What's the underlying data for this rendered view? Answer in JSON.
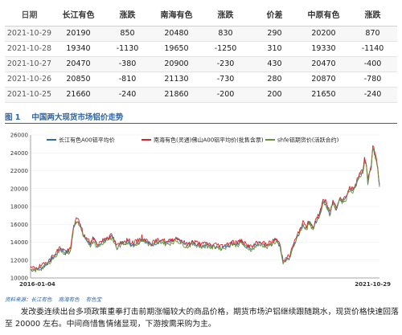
{
  "table": {
    "headers": [
      "日期",
      "长江有色",
      "涨跌",
      "南海有色",
      "涨跌",
      "价差",
      "中原有色",
      "涨跌"
    ],
    "rows": [
      [
        "2021-10-29",
        "20190",
        "850",
        "20480",
        "830",
        "290",
        "20200",
        "870"
      ],
      [
        "2021-10-28",
        "19340",
        "-1130",
        "19650",
        "-1250",
        "310",
        "19330",
        "-1140"
      ],
      [
        "2021-10-27",
        "20470",
        "-380",
        "20900",
        "-230",
        "430",
        "20470",
        "-400"
      ],
      [
        "2021-10-26",
        "20850",
        "-810",
        "21130",
        "-730",
        "280",
        "20870",
        "-780"
      ],
      [
        "2021-10-25",
        "21660",
        "-240",
        "21860",
        "-200",
        "200",
        "21650",
        "-240"
      ]
    ]
  },
  "figure": {
    "number": "图 1",
    "title": "中国两大现货市场铝价走势"
  },
  "chart_data": {
    "type": "line",
    "title": "",
    "xlabel": "",
    "ylabel": "",
    "x_tick_labels": [
      "2016-01-04",
      "2021-10-29"
    ],
    "ylim": [
      10000,
      26000
    ],
    "y_ticks": [
      10000,
      12000,
      14000,
      16000,
      18000,
      20000,
      22000,
      24000,
      26000
    ],
    "series": [
      {
        "name": "长江有色A00铝平均价",
        "color": "#2e6bb5"
      },
      {
        "name": "南海有色(灵通)佛山A00铝平均价(批售含票)",
        "color": "#d7262b"
      },
      {
        "name": "shfe铝期货价(活跃合约)",
        "color": "#6d8f3a"
      }
    ],
    "x_index": [
      0,
      8,
      16,
      24,
      30,
      36,
      42,
      48,
      52,
      56,
      60,
      64,
      68,
      72,
      76,
      80,
      86,
      92,
      98,
      104,
      110,
      116,
      122,
      128,
      134,
      140,
      146,
      152,
      158,
      164,
      170,
      176,
      182,
      188,
      194,
      200,
      206,
      212,
      218,
      224,
      230,
      236,
      242,
      248,
      254,
      260,
      266,
      272,
      278,
      284,
      290,
      296,
      300,
      304,
      308,
      312,
      316,
      320,
      324,
      328,
      332,
      336,
      340,
      344,
      348,
      352,
      356,
      360,
      364,
      368,
      372,
      376,
      380,
      384,
      388,
      392,
      396,
      400,
      402,
      404,
      406,
      408,
      410,
      412,
      414,
      416,
      418,
      420
    ],
    "values": [
      10900,
      11000,
      11300,
      12000,
      12600,
      13300,
      12800,
      13000,
      15800,
      16500,
      15800,
      14600,
      14200,
      13800,
      14300,
      13600,
      14000,
      14400,
      14600,
      13400,
      13900,
      14100,
      13800,
      13900,
      14400,
      14000,
      13700,
      14000,
      14200,
      13800,
      14100,
      14300,
      14000,
      13600,
      13900,
      13800,
      13600,
      13700,
      13500,
      13600,
      13400,
      13600,
      13900,
      13800,
      14000,
      13500,
      13300,
      13700,
      13900,
      13500,
      13900,
      14200,
      13600,
      11800,
      12100,
      12300,
      13600,
      14300,
      15300,
      16000,
      15600,
      16300,
      15400,
      16400,
      17100,
      18600,
      18300,
      17200,
      18400,
      17800,
      18900,
      18600,
      19000,
      20000,
      19800,
      20500,
      21500,
      21900,
      23300,
      22800,
      20700,
      21800,
      22400,
      24600,
      24000,
      23400,
      22000,
      20300
    ]
  },
  "source": [
    "资料来源：长江有色",
    "南海有色",
    "有色宝"
  ],
  "paragraph": "发改委连续出台多项政策重拳打击前期涨幅较大的商品价格，期货市场沪铝继续跟随跳水，现货价格快速回落至 20000 左右。中间商惜售情绪显现，下游按需采购为主。"
}
